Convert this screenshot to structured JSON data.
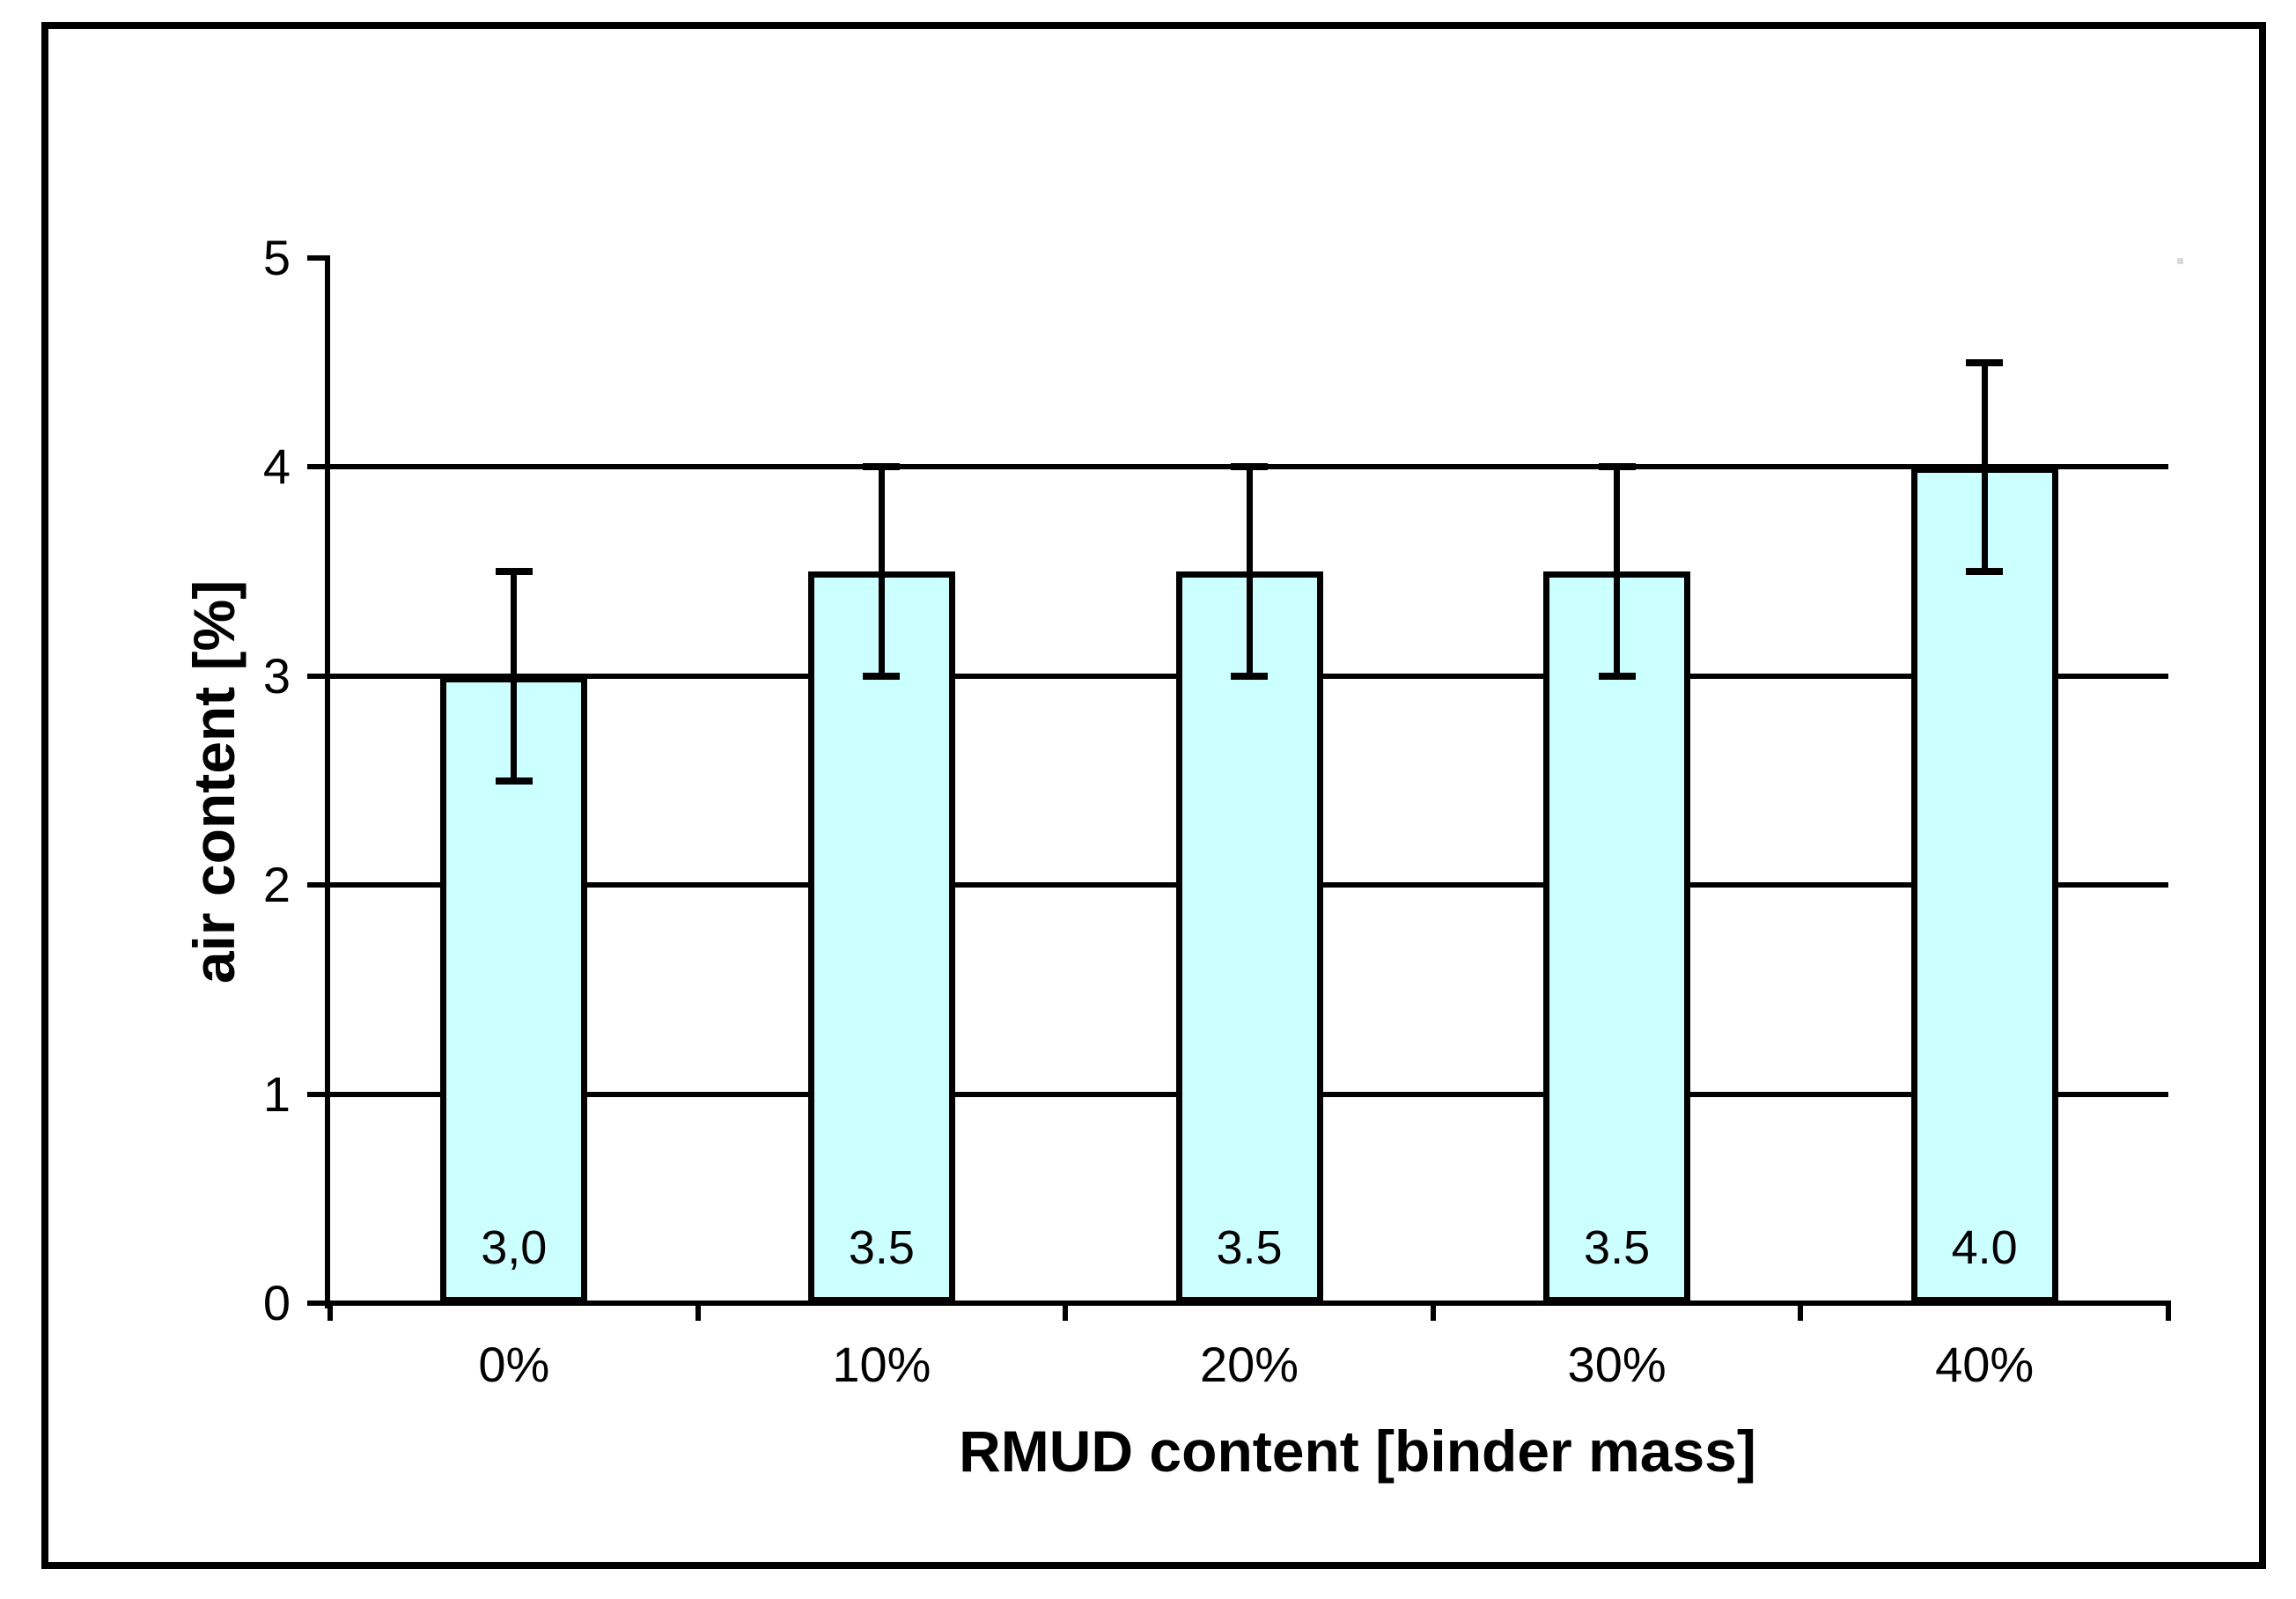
{
  "figure": {
    "background": "#ffffff",
    "border_color": "#000000"
  },
  "chart_data": {
    "type": "bar",
    "title": "",
    "xlabel": "RMUD content [binder mass]",
    "ylabel": "air content [%]",
    "categories": [
      "0%",
      "10%",
      "20%",
      "30%",
      "40%"
    ],
    "values": [
      3.0,
      3.5,
      3.5,
      3.5,
      4.0
    ],
    "value_labels": [
      "3,0",
      "3.5",
      "3.5",
      "3.5",
      "4.0"
    ],
    "error_bars": [
      0.5,
      0.5,
      0.5,
      0.5,
      0.5
    ],
    "ylim": [
      0,
      5
    ],
    "yticks": [
      0,
      1,
      2,
      3,
      4,
      5
    ],
    "ytick_labels": [
      "0",
      "1",
      "2",
      "3",
      "4",
      "5"
    ],
    "gridlines": [
      1,
      2,
      3,
      4
    ],
    "grid": true,
    "legend": "none",
    "bar_color": "#ccffff",
    "bar_border_color": "#000000",
    "axis_color": "#000000",
    "text_color": "#000000"
  }
}
